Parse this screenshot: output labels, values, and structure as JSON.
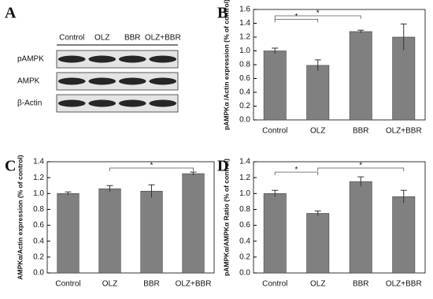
{
  "panel_labels": [
    "A",
    "B",
    "C",
    "D"
  ],
  "blot": {
    "lanes": [
      "Control",
      "OLZ",
      "BBR",
      "OLZ+BBR"
    ],
    "rows": [
      "pAMPK",
      "AMPK",
      "β-Actin"
    ]
  },
  "chart_data": [
    {
      "type": "bar",
      "y_label": "pAMPKα /Actin expression (% of control)",
      "categories": [
        "Control",
        "OLZ",
        "BBR",
        "OLZ+BBR"
      ],
      "values": [
        1.0,
        0.79,
        1.28,
        1.2
      ],
      "errors": [
        0.04,
        0.08,
        0.02,
        0.19
      ],
      "color": "#808080",
      "ylim": [
        0,
        1.6
      ],
      "yticks": [
        {
          "value": 0,
          "label": "0.0"
        },
        0.2,
        0.4,
        0.6,
        0.8,
        {
          "value": 1,
          "label": "1.0"
        },
        1.2,
        1.4,
        1.6
      ],
      "significance": [
        {
          "label": "*",
          "pair": [
            "Control",
            "OLZ"
          ]
        },
        {
          "label": "*",
          "pair": [
            "Control",
            "BBR"
          ]
        }
      ]
    },
    {
      "type": "bar",
      "y_label": "AMPKα/Actin expression (% of control)",
      "categories": [
        "Control",
        "OLZ",
        "BBR",
        "OLZ+BBR"
      ],
      "values": [
        1.0,
        1.06,
        1.03,
        1.25
      ],
      "errors": [
        0.02,
        0.04,
        0.08,
        0.02
      ],
      "color": "#808080",
      "ylim": [
        0,
        1.4
      ],
      "yticks": [
        {
          "value": 0,
          "label": "0.0"
        },
        0.2,
        0.4,
        0.6,
        0.8,
        {
          "value": 1,
          "label": "1.0"
        },
        1.2,
        1.4
      ],
      "significance": [
        {
          "label": "*",
          "pair": [
            "OLZ",
            "OLZ+BBR"
          ]
        }
      ]
    },
    {
      "type": "bar",
      "y_label": "pAMPKα/AMPKα Ratio (% of control)",
      "categories": [
        "Control",
        "OLZ",
        "BBR",
        "OLZ+BBR"
      ],
      "values": [
        1.0,
        0.75,
        1.15,
        0.96
      ],
      "errors": [
        0.04,
        0.03,
        0.06,
        0.08
      ],
      "color": "#808080",
      "ylim": [
        0,
        1.4
      ],
      "yticks": [
        {
          "value": 0,
          "label": "0.0"
        },
        0.2,
        0.4,
        0.6,
        0.8,
        {
          "value": 1,
          "label": "1.0"
        },
        1.2,
        1.4
      ],
      "significance": [
        {
          "label": "*",
          "pair": [
            "Control",
            "OLZ"
          ]
        },
        {
          "label": "*",
          "pair": [
            "OLZ",
            "OLZ+BBR"
          ]
        }
      ]
    }
  ]
}
